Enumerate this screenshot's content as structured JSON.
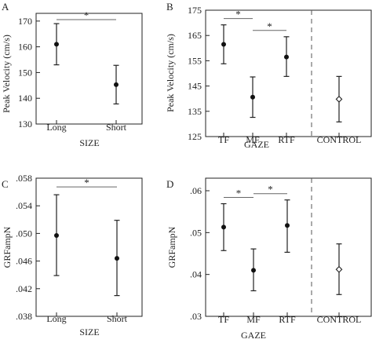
{
  "chart_data": [
    {
      "type": "scatter",
      "panel_label": "A",
      "ylabel": "Peak Velocity (cm/s)",
      "xlabel": "SIZE",
      "categories": [
        "Long",
        "Short"
      ],
      "yticks": [
        "130",
        "140",
        "150",
        "160",
        "170"
      ],
      "ylim": [
        130,
        173
      ],
      "points": [
        {
          "category": "Long",
          "mean": 161.0,
          "low": 153.0,
          "high": 169.0
        },
        {
          "category": "Short",
          "mean": 145.3,
          "low": 137.8,
          "high": 152.8
        }
      ],
      "significance": [
        {
          "from": "Long",
          "to": "Short",
          "label": "*"
        }
      ]
    },
    {
      "type": "scatter",
      "panel_label": "B",
      "ylabel": "Peak Velocity (cm/s)",
      "xlabel": "GAZE",
      "categories": [
        "TF",
        "MF",
        "RTF",
        "CONTROL"
      ],
      "yticks": [
        "125",
        "135",
        "145",
        "155",
        "165",
        "175"
      ],
      "ylim": [
        125,
        175
      ],
      "points": [
        {
          "category": "TF",
          "mean": 161.5,
          "low": 153.8,
          "high": 169.2
        },
        {
          "category": "MF",
          "mean": 140.6,
          "low": 132.6,
          "high": 148.6
        },
        {
          "category": "RTF",
          "mean": 156.5,
          "low": 148.8,
          "high": 164.5
        },
        {
          "category": "CONTROL",
          "mean": 139.8,
          "low": 130.8,
          "high": 148.8,
          "open_marker": true
        }
      ],
      "significance": [
        {
          "from": "TF",
          "to": "MF",
          "label": "*"
        },
        {
          "from": "MF",
          "to": "RTF",
          "label": "*"
        }
      ],
      "divider_between": [
        "RTF",
        "CONTROL"
      ]
    },
    {
      "type": "scatter",
      "panel_label": "C",
      "ylabel": "GRFampN",
      "xlabel": "SIZE",
      "categories": [
        "Long",
        "Short"
      ],
      "yticks": [
        ".038",
        ".042",
        ".046",
        ".050",
        ".054",
        ".058"
      ],
      "ylim": [
        0.038,
        0.058
      ],
      "points": [
        {
          "category": "Long",
          "mean": 0.0497,
          "low": 0.0439,
          "high": 0.0556
        },
        {
          "category": "Short",
          "mean": 0.0464,
          "low": 0.041,
          "high": 0.0519
        }
      ],
      "significance": [
        {
          "from": "Long",
          "to": "Short",
          "label": "*"
        }
      ]
    },
    {
      "type": "scatter",
      "panel_label": "D",
      "ylabel": "GRFampN",
      "xlabel": "GAZE",
      "categories": [
        "TF",
        "MF",
        "RTF",
        "CONTROL"
      ],
      "yticks": [
        ".03",
        ".04",
        ".05",
        ".06"
      ],
      "ylim": [
        0.03,
        0.063
      ],
      "points": [
        {
          "category": "TF",
          "mean": 0.0513,
          "low": 0.0457,
          "high": 0.0569
        },
        {
          "category": "MF",
          "mean": 0.041,
          "low": 0.0361,
          "high": 0.0461
        },
        {
          "category": "RTF",
          "mean": 0.0517,
          "low": 0.0453,
          "high": 0.0578
        },
        {
          "category": "CONTROL",
          "mean": 0.0412,
          "low": 0.0352,
          "high": 0.0473,
          "open_marker": true
        }
      ],
      "significance": [
        {
          "from": "TF",
          "to": "MF",
          "label": "*"
        },
        {
          "from": "MF",
          "to": "RTF",
          "label": "*"
        }
      ],
      "divider_between": [
        "RTF",
        "CONTROL"
      ]
    }
  ]
}
